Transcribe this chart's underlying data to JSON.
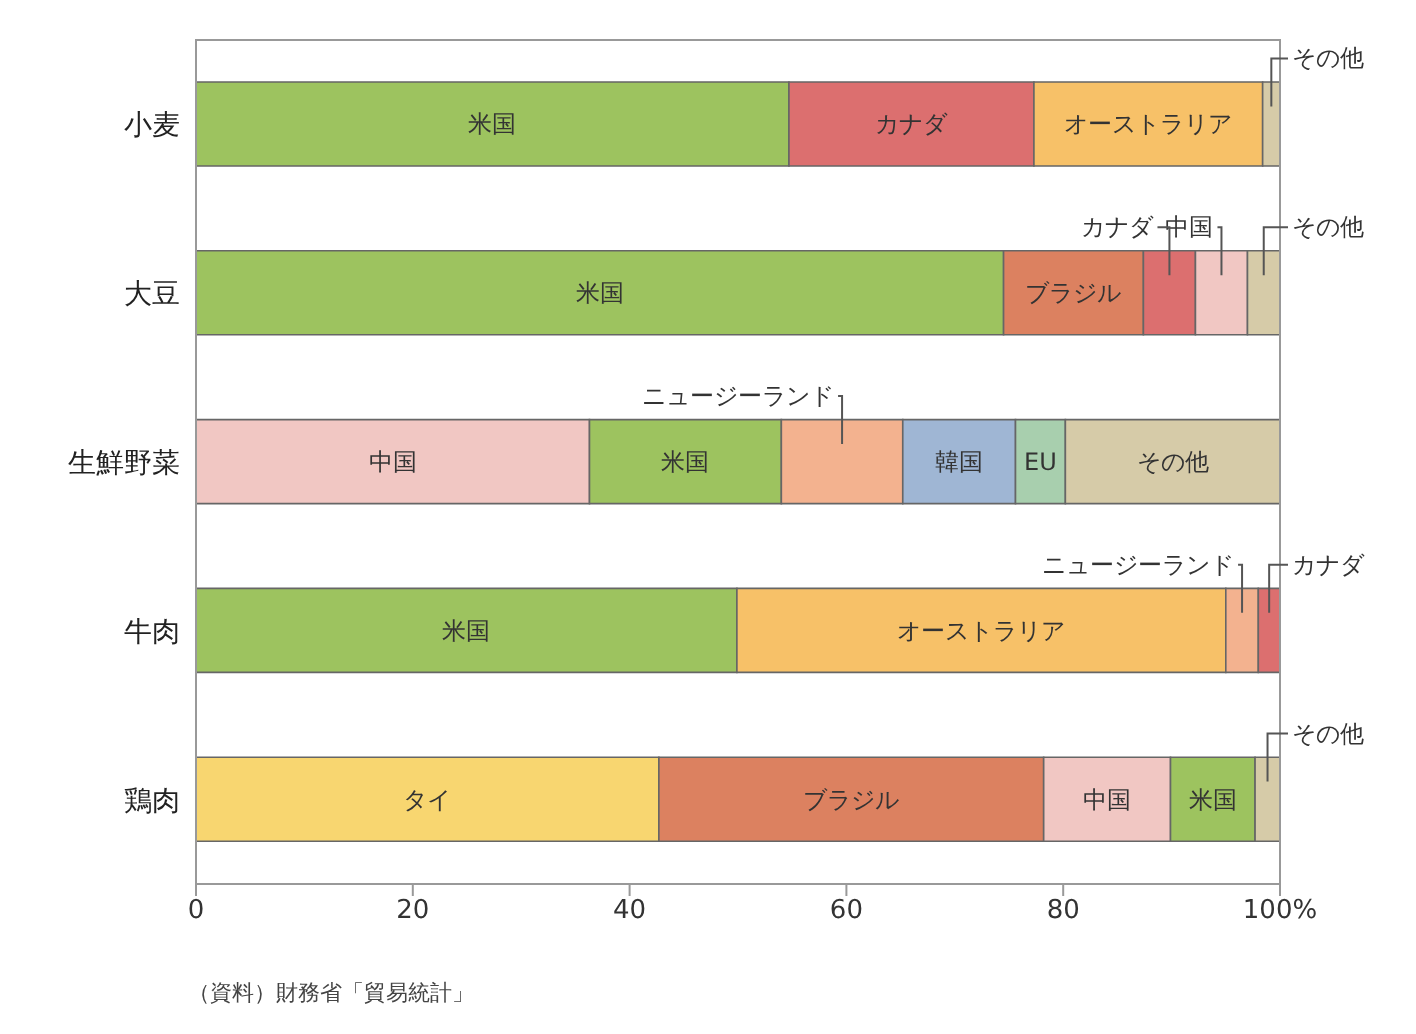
{
  "chart_data": {
    "type": "bar",
    "orientation": "horizontal",
    "stacked": true,
    "categories": [
      "小麦",
      "大豆",
      "生鮮野菜",
      "牛肉",
      "鶏肉"
    ],
    "xlim": [
      0,
      100
    ],
    "xticks": [
      0,
      20,
      40,
      60,
      80,
      {
        "value": 100,
        "label": "100%"
      }
    ],
    "series": [
      {
        "values": [
          54.7,
          74.5,
          36.3,
          49.9,
          42.7
        ],
        "colors": [
          "#9dc35f",
          "#9dc35f",
          "#f1c7c3",
          "#9dc35f",
          "#f8d670"
        ],
        "value_labels": [
          "米国",
          "米国",
          "中国",
          "米国",
          "タイ"
        ]
      },
      {
        "values": [
          22.6,
          12.9,
          17.7,
          45.1,
          35.5
        ],
        "colors": [
          "#dc6f6f",
          "#dc8160",
          "#9dc35f",
          "#f7c168",
          "#dc8160"
        ],
        "value_labels": [
          "カナダ",
          "ブラジル",
          "米国",
          "オーストラリア",
          "ブラジル"
        ]
      },
      {
        "values": [
          21.1,
          4.8,
          11.2,
          3.0,
          11.7
        ],
        "colors": [
          "#f7c168",
          "#dc6f6f",
          "#f3b28f",
          "#f3b28f",
          "#f1c7c3"
        ],
        "value_labels": [
          "オーストラリア",
          "カナダ",
          "ニュージーランド",
          "ニュージーランド",
          "中国"
        ]
      },
      {
        "values": [
          1.6,
          4.8,
          10.4,
          2.0,
          7.8
        ],
        "colors": [
          "#d6cba8",
          "#f1c7c3",
          "#9fb6d4",
          "#dc6f6f",
          "#9dc35f"
        ],
        "value_labels": [
          "その他",
          "中国",
          "韓国",
          "カナダ",
          "米国"
        ]
      },
      {
        "values": [
          null,
          3.0,
          4.6,
          null,
          2.3
        ],
        "colors": [
          null,
          "#d6cba8",
          "#a8cfae",
          null,
          "#d6cba8"
        ],
        "value_labels": [
          null,
          "その他",
          "EU",
          null,
          "その他"
        ]
      },
      {
        "values": [
          null,
          null,
          19.8,
          null,
          null
        ],
        "colors": [
          null,
          null,
          "#d6cba8",
          null,
          null
        ],
        "value_labels": [
          null,
          null,
          "その他",
          null,
          null
        ]
      }
    ],
    "annotations": [
      "（資料）財務省「貿易統計」"
    ]
  }
}
